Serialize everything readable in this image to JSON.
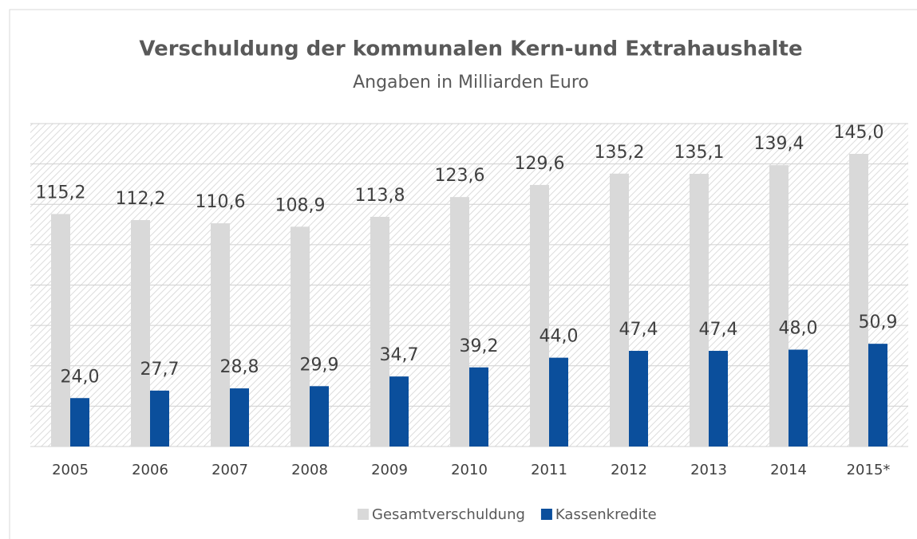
{
  "chart_data": {
    "type": "bar",
    "title": "Verschuldung der kommunalen Kern-und Extrahaushalte",
    "subtitle": "Angaben in Milliarden Euro",
    "categories": [
      "2005",
      "2006",
      "2007",
      "2008",
      "2009",
      "2010",
      "2011",
      "2012",
      "2013",
      "2014",
      "2015*"
    ],
    "series": [
      {
        "name": "Gesamtverschuldung",
        "color": "#d9d9d9",
        "values": [
          115.2,
          112.2,
          110.6,
          108.9,
          113.8,
          123.6,
          129.6,
          135.2,
          135.1,
          139.4,
          145.0
        ],
        "value_labels": [
          "115,2",
          "112,2",
          "110,6",
          "108,9",
          "113,8",
          "123,6",
          "129,6",
          "135,2",
          "135,1",
          "139,4",
          "145,0"
        ]
      },
      {
        "name": "Kassenkredite",
        "color": "#0b4f9c",
        "values": [
          24.0,
          27.7,
          28.8,
          29.9,
          34.7,
          39.2,
          44.0,
          47.4,
          47.4,
          48.0,
          50.9
        ],
        "value_labels": [
          "24,0",
          "27,7",
          "28,8",
          "29,9",
          "34,7",
          "39,2",
          "44,0",
          "47,4",
          "47,4",
          "48,0",
          "50,9"
        ]
      }
    ],
    "ylim": [
      0,
      160
    ],
    "yticks": [
      0,
      20,
      40,
      60,
      80,
      100,
      120,
      140,
      160
    ],
    "grid": true,
    "legend": "bottom"
  }
}
